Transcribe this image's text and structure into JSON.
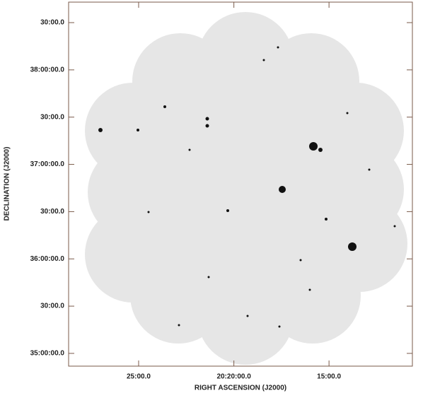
{
  "chart_data": {
    "type": "image",
    "xlabel": "RIGHT ASCENSION (J2000)",
    "ylabel": "DECLINATION (J2000)",
    "xlim": [
      20.478,
      20.177
    ],
    "ylim": [
      34.865,
      38.717
    ],
    "xticks": [
      {
        "value": 20.4167,
        "label": "25:00.0"
      },
      {
        "value": 20.3333,
        "label": "20:20:00.0"
      },
      {
        "value": 20.25,
        "label": "15:00.0"
      }
    ],
    "yticks": [
      {
        "value": 38.5,
        "label": "30:00.0"
      },
      {
        "value": 38,
        "label": "38:00:00.0"
      },
      {
        "value": 37.5,
        "label": "30:00.0"
      },
      {
        "value": 37,
        "label": "37:00:00.0"
      },
      {
        "value": 36.5,
        "label": "30:00.0"
      },
      {
        "value": 36,
        "label": "36:00:00.0"
      },
      {
        "value": 35.5,
        "label": "30:00.0"
      },
      {
        "value": 35,
        "label": "35:00:00.0"
      }
    ]
  }
}
